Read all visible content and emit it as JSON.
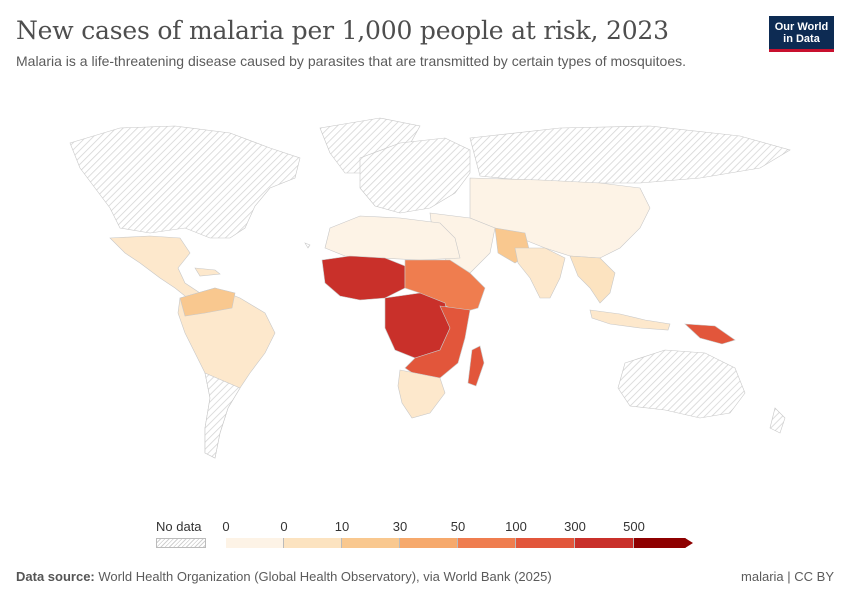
{
  "header": {
    "title": "New cases of malaria per 1,000 people at risk, 2023",
    "subtitle": "Malaria is a life-threatening disease caused by parasites that are transmitted by certain types of mosquitoes."
  },
  "logo": {
    "line1": "Our World",
    "line2": "in Data"
  },
  "legend": {
    "no_data_label": "No data",
    "tick_labels": [
      "0",
      "0",
      "10",
      "30",
      "50",
      "100",
      "300",
      "500"
    ],
    "bin_colors": [
      "#fdf3e6",
      "#fce3c0",
      "#f9c88f",
      "#f6a96c",
      "#ef7d4f",
      "#e2563b",
      "#c9302a",
      "#8e0000"
    ]
  },
  "footer": {
    "source_label": "Data source:",
    "source_text": "World Health Organization (Global Health Observatory), via World Bank (2025)",
    "right": "malaria | CC BY"
  },
  "colors": {
    "no_data": "#e6e6e6",
    "border": "#c8c8c8",
    "logo_bg": "#0d2b53",
    "logo_accent": "#c8102e"
  }
}
